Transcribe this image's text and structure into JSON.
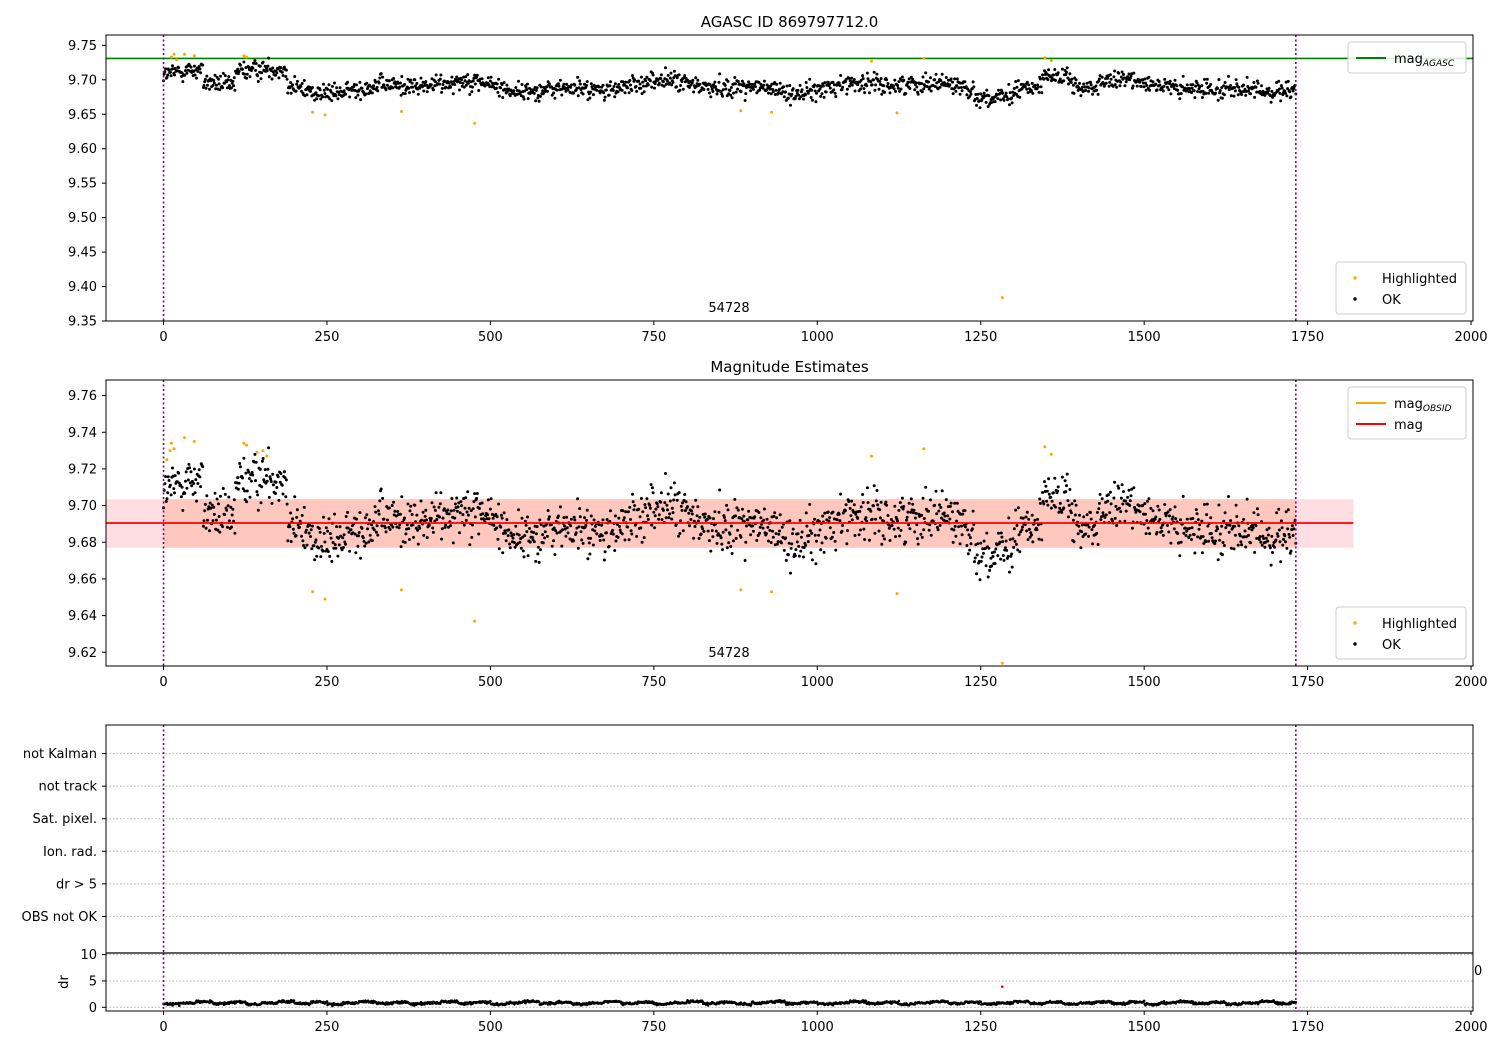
{
  "figure": {
    "colors": {
      "ok": "#000000",
      "highlighted": "#ffa500",
      "agasc": "#008000",
      "mag": "#ff0000",
      "mag_obsid": "#ffa500",
      "band": "#ffb6c1",
      "vline": "#800080",
      "dr_highlight": "#ff0000"
    }
  },
  "chart_data": [
    {
      "id": "agasc",
      "type": "scatter",
      "title": "AGASC ID 869797712.0",
      "xlabel": "",
      "ylabel": "",
      "xlim": [
        -88,
        2003
      ],
      "ylim": [
        9.35,
        9.765
      ],
      "xticks": [
        0,
        250,
        500,
        750,
        1000,
        1250,
        1500,
        1750,
        2000
      ],
      "yticks": [
        9.35,
        9.4,
        9.45,
        9.5,
        9.55,
        9.6,
        9.65,
        9.7,
        9.75
      ],
      "ytick_labels": [
        "9.35",
        "9.40",
        "9.45",
        "9.50",
        "9.55",
        "9.60",
        "9.65",
        "9.70",
        "9.75"
      ],
      "annotation": {
        "text": "54728",
        "x": 865
      },
      "vlines": [
        0,
        1732
      ],
      "hline": {
        "name": "mag_AGASC",
        "y": 9.731
      },
      "series": [
        {
          "name": "Highlighted",
          "points": [
            [
              12,
              9.733
            ],
            [
              16,
              9.737
            ],
            [
              20,
              9.729
            ],
            [
              32,
              9.737
            ],
            [
              47,
              9.735
            ],
            [
              123,
              9.735
            ],
            [
              127,
              9.733
            ],
            [
              228,
              9.653
            ],
            [
              247,
              9.649
            ],
            [
              364,
              9.654
            ],
            [
              476,
              9.637
            ],
            [
              883,
              9.655
            ],
            [
              930,
              9.653
            ],
            [
              1083,
              9.727
            ],
            [
              1122,
              9.652
            ],
            [
              1163,
              9.731
            ],
            [
              1283,
              9.384
            ],
            [
              1348,
              9.732
            ],
            [
              1358,
              9.728
            ]
          ]
        },
        {
          "name": "OK",
          "generated": true,
          "x_range": [
            0,
            1732
          ],
          "n": 1650,
          "base": 9.69,
          "noise": 0.0095
        }
      ],
      "legends": [
        {
          "position": "top-right",
          "entries": [
            {
              "label": "mag",
              "subscript": "AGASC",
              "kind": "line",
              "color": "#008000"
            }
          ]
        },
        {
          "position": "lower-right",
          "entries": [
            {
              "label": "Highlighted",
              "kind": "dot",
              "color": "#ffa500"
            },
            {
              "label": "OK",
              "kind": "dot",
              "color": "#000000"
            }
          ]
        }
      ]
    },
    {
      "id": "estimates",
      "type": "scatter",
      "title": "Magnitude Estimates",
      "xlabel": "",
      "ylabel": "",
      "xlim": [
        -88,
        2003
      ],
      "ylim": [
        9.6125,
        9.7685
      ],
      "xticks": [
        0,
        250,
        500,
        750,
        1000,
        1250,
        1500,
        1750,
        2000
      ],
      "yticks": [
        9.62,
        9.64,
        9.66,
        9.68,
        9.7,
        9.72,
        9.74,
        9.76
      ],
      "ytick_labels": [
        "9.62",
        "9.64",
        "9.66",
        "9.68",
        "9.70",
        "9.72",
        "9.74",
        "9.76"
      ],
      "annotation": {
        "text": "54728",
        "x": 865
      },
      "vlines": [
        0,
        1732
      ],
      "mag_line": {
        "name": "mag",
        "y": 9.6905,
        "x_range": [
          -88,
          1820
        ],
        "band": [
          9.677,
          9.7035
        ]
      },
      "mag_obsid": {
        "name": "mag_OBSID",
        "y": 9.6905,
        "x_range": [
          0,
          1732
        ],
        "band": [
          9.677,
          9.7035
        ]
      },
      "series": [
        {
          "name": "Highlighted",
          "points": [
            [
              5,
              9.725
            ],
            [
              10,
              9.73
            ],
            [
              12,
              9.734
            ],
            [
              16,
              9.731
            ],
            [
              32,
              9.737
            ],
            [
              47,
              9.735
            ],
            [
              123,
              9.734
            ],
            [
              127,
              9.733
            ],
            [
              143,
              9.729
            ],
            [
              152,
              9.73
            ],
            [
              158,
              9.727
            ],
            [
              228,
              9.653
            ],
            [
              247,
              9.649
            ],
            [
              364,
              9.654
            ],
            [
              476,
              9.637
            ],
            [
              883,
              9.654
            ],
            [
              930,
              9.653
            ],
            [
              1083,
              9.727
            ],
            [
              1122,
              9.652
            ],
            [
              1163,
              9.731
            ],
            [
              1283,
              9.614
            ],
            [
              1348,
              9.732
            ],
            [
              1358,
              9.728
            ]
          ]
        },
        {
          "name": "OK",
          "generated": true,
          "x_range": [
            0,
            1732
          ],
          "n": 1650,
          "base": 9.69,
          "noise": 0.0095
        }
      ],
      "legends": [
        {
          "position": "top-right",
          "entries": [
            {
              "label": "mag",
              "subscript": "OBSID",
              "kind": "line",
              "color": "#ffa500"
            },
            {
              "label": "mag",
              "kind": "line",
              "color": "#ff0000"
            }
          ]
        },
        {
          "position": "lower-right",
          "entries": [
            {
              "label": "Highlighted",
              "kind": "dot",
              "color": "#ffa500"
            },
            {
              "label": "OK",
              "kind": "dot",
              "color": "#000000"
            }
          ]
        }
      ]
    },
    {
      "id": "flags",
      "type": "scatter",
      "title": "",
      "xlim": [
        -88,
        2003
      ],
      "categories": [
        "not Kalman",
        "not track",
        "Sat. pixel.",
        "Ion. rad.",
        "dr > 5",
        "OBS not OK"
      ],
      "grid": true,
      "vlines": [
        0,
        1732
      ],
      "series": []
    },
    {
      "id": "dr",
      "type": "scatter",
      "title": "",
      "xlabel": "",
      "ylabel": "dr",
      "xlim": [
        -88,
        2003
      ],
      "ylim": [
        -0.7,
        10.3
      ],
      "xticks": [
        0,
        250,
        500,
        750,
        1000,
        1250,
        1500,
        1750,
        2000
      ],
      "yticks": [
        0,
        5,
        10
      ],
      "ytick_labels": [
        "0",
        "5",
        "10"
      ],
      "grid": true,
      "vlines": [
        0,
        1732
      ],
      "edge_label": "0",
      "series": [
        {
          "name": "OK",
          "generated": true,
          "x_range": [
            0,
            1732
          ],
          "n": 1650,
          "base": 0.6,
          "noise": 0.35
        },
        {
          "name": "Highlighted",
          "points": [
            [
              1283,
              3.9
            ]
          ]
        }
      ]
    }
  ]
}
